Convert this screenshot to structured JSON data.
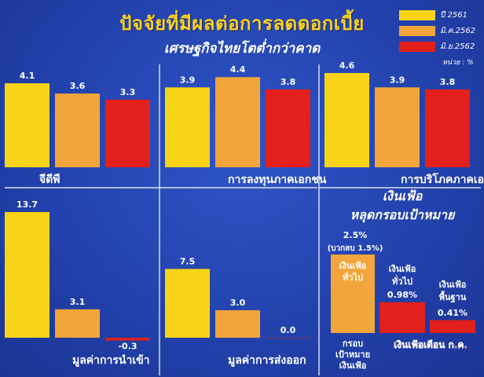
{
  "header": {
    "title": "ปัจจัยที่มีผลต่อการลดดอกเบี้ย",
    "subtitle": "เศรษฐกิจไทยโตต่ำกว่าคาด",
    "unit": "หน่วย : %"
  },
  "legend": [
    {
      "label": "ปี 2561",
      "color": "#f7d417"
    },
    {
      "label": "มิ.ค.2562",
      "color": "#f2a53a"
    },
    {
      "label": "มิ.ย.2562",
      "color": "#e3201b"
    }
  ],
  "chart_data": [
    {
      "type": "bar",
      "xlabel": "จีดีพี",
      "categories": [
        "ปี 2561",
        "มิ.ค.2562",
        "มิ.ย.2562"
      ],
      "values": [
        4.1,
        3.6,
        3.3
      ],
      "value_labels": [
        "4.1",
        "3.6",
        "3.3"
      ]
    },
    {
      "type": "bar",
      "xlabel": "การลงทุนภาคเอกชน",
      "categories": [
        "ปี 2561",
        "มิ.ค.2562",
        "มิ.ย.2562"
      ],
      "values": [
        3.9,
        4.4,
        3.8
      ],
      "value_labels": [
        "3.9",
        "4.4",
        "3.8"
      ]
    },
    {
      "type": "bar",
      "xlabel": "การบริโภคภาคเอกชน",
      "categories": [
        "ปี 2561",
        "มิ.ค.2562",
        "มิ.ย.2562"
      ],
      "values": [
        4.6,
        3.9,
        3.8
      ],
      "value_labels": [
        "4.6",
        "3.9",
        "3.8"
      ]
    },
    {
      "type": "bar",
      "xlabel": "มูลค่าการนำเข้า",
      "categories": [
        "ปี 2561",
        "มิ.ค.2562",
        "มิ.ย.2562"
      ],
      "values": [
        13.7,
        3.1,
        -0.3
      ],
      "value_labels": [
        "13.7",
        "3.1",
        "-0.3"
      ]
    },
    {
      "type": "bar",
      "xlabel": "มูลค่าการส่งออก",
      "categories": [
        "ปี 2561",
        "มิ.ค.2562",
        "มิ.ย.2562"
      ],
      "values": [
        7.5,
        3.0,
        0.0
      ],
      "value_labels": [
        "7.5",
        "3.0",
        "0.0"
      ]
    },
    {
      "type": "bar",
      "title": "เงินเฟ้อ หลุดกรอบเป้าหมาย",
      "categories": [
        "เงินเฟ้อ ทั่วไป",
        "เงินเฟ้อ ทั่วไป",
        "เงินเฟ้อ พื้นฐาน"
      ],
      "values": [
        2.5,
        0.98,
        0.41
      ],
      "value_labels": [
        "2.5%",
        "0.98%",
        "0.41%"
      ],
      "target_note": "(บวกลบ 1.5%)",
      "target_axis_label": "กรอบ เป้าหมาย เงินเฟ้อ",
      "month_label": "เงินเฟ้อเดือน ก.ค."
    }
  ],
  "inflation_panel": {
    "title_line1": "เงินเฟ้อ",
    "title_line2": "หลุดกรอบเป้าหมาย",
    "target_value": "2.5%",
    "target_note": "(บวกลบ 1.5%)",
    "bar1_name_1": "เงินเฟ้อ",
    "bar1_name_2": "ทั่วไป",
    "bar2_name_1": "เงินเฟ้อ",
    "bar2_name_2": "ทั่วไป",
    "bar2_value": "0.98%",
    "bar3_name_1": "เงินเฟ้อ",
    "bar3_name_2": "พื้นฐาน",
    "bar3_value": "0.41%",
    "axis_label_1": "กรอบ",
    "axis_label_2": "เป้าหมาย",
    "axis_label_3": "เงินเฟ้อ",
    "month_label": "เงินเฟ้อเดือน ก.ค."
  }
}
